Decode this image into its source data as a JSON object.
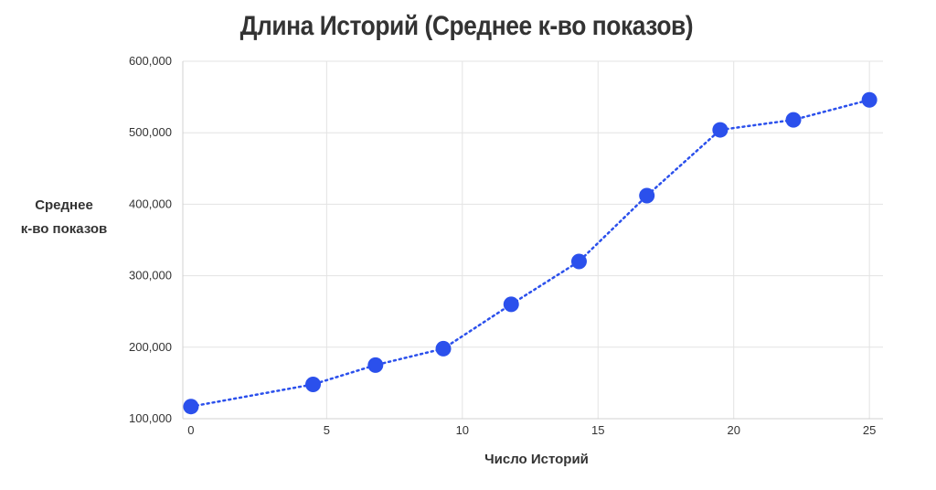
{
  "chart_data": {
    "type": "line",
    "title": "Длина Историй (Среднее к-во показов)",
    "xlabel": "Число Историй",
    "ylabel": [
      "Среднее",
      "к-во показов"
    ],
    "x_ticks": [
      "0",
      "5",
      "10",
      "15",
      "20",
      "25"
    ],
    "y_ticks": [
      "100,000",
      "200,000",
      "300,000",
      "400,000",
      "500,000",
      "600,000"
    ],
    "xlim": [
      -0.3,
      25.5
    ],
    "ylim": [
      100000,
      600000
    ],
    "grid": true,
    "line_style": "dotted",
    "series": [
      {
        "color": "#2b50ec",
        "x": [
          0,
          4.5,
          6.8,
          9.3,
          11.8,
          14.3,
          16.8,
          19.5,
          22.2,
          25
        ],
        "y": [
          117000,
          148000,
          175000,
          198000,
          260000,
          320000,
          412000,
          504000,
          518000,
          546000
        ]
      }
    ]
  }
}
